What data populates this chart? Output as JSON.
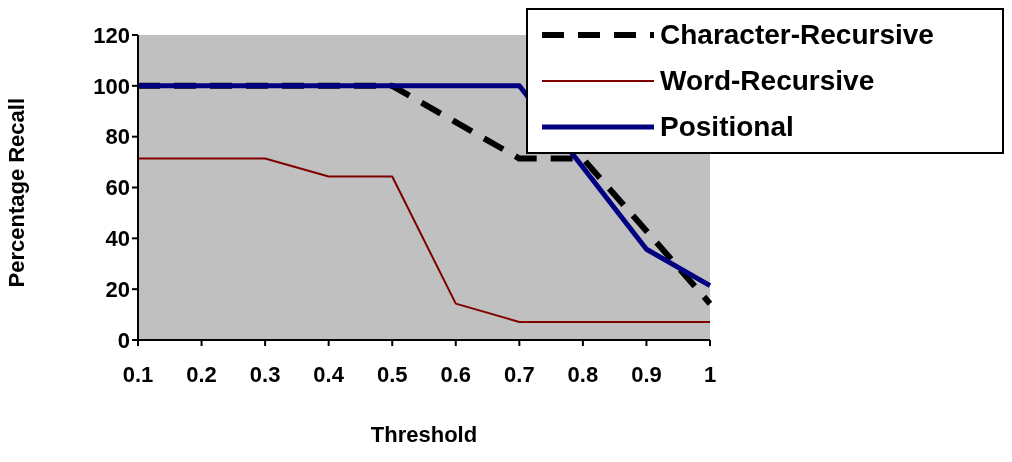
{
  "chart_data": {
    "type": "line",
    "xlabel": "Threshold",
    "ylabel": "Percentage Recall",
    "categories": [
      "0.1",
      "0.2",
      "0.3",
      "0.4",
      "0.5",
      "0.6",
      "0.7",
      "0.8",
      "0.9",
      "1"
    ],
    "series": [
      {
        "name": "Character-Recursive",
        "color": "#000000",
        "line_style": "dashed",
        "values": [
          100,
          100,
          100,
          100,
          100,
          85.7,
          71.4,
          71.4,
          42.9,
          14.3
        ]
      },
      {
        "name": "Word-Recursive",
        "color": "#800000",
        "line_style": "solid",
        "values": [
          71.4,
          71.4,
          71.4,
          64.3,
          64.3,
          14.3,
          7.1,
          7.1,
          7.1,
          7.1
        ]
      },
      {
        "name": "Positional",
        "color": "#000080",
        "line_style": "solid",
        "values": [
          100,
          100,
          100,
          100,
          100,
          100,
          100,
          68,
          35.7,
          21.4
        ]
      }
    ],
    "ylim": [
      0,
      120
    ],
    "yticks": [
      0,
      20,
      40,
      60,
      80,
      100,
      120
    ],
    "grid": false,
    "legend": "top right",
    "marker": "none"
  }
}
